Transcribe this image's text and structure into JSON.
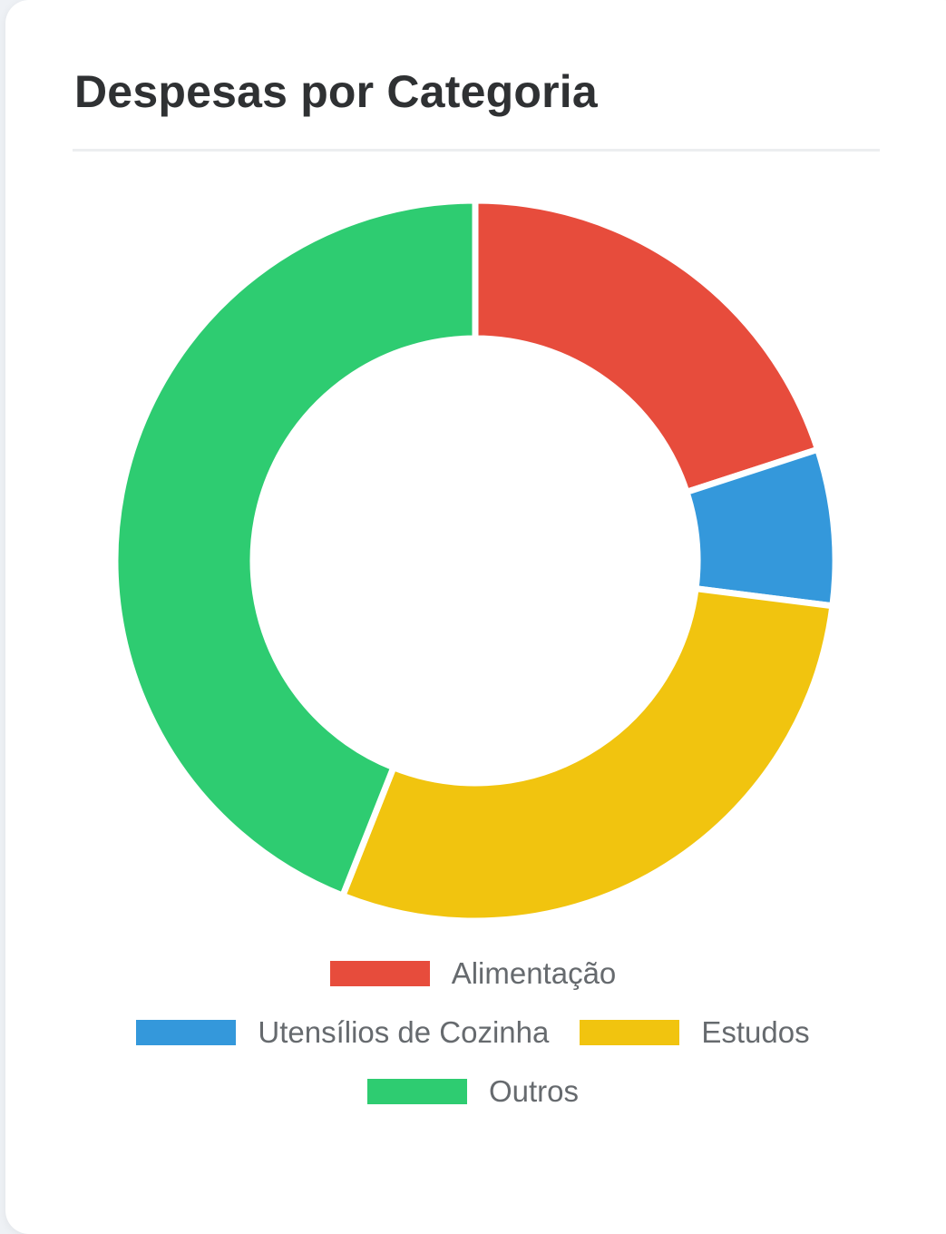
{
  "card": {
    "title": "Despesas por Categoria"
  },
  "chart_data": {
    "type": "pie",
    "variant": "doughnut",
    "title": "Despesas por Categoria",
    "categories": [
      "Alimentação",
      "Utensílios de Cozinha",
      "Estudos",
      "Outros"
    ],
    "values": [
      20,
      7,
      29,
      44
    ],
    "colors": [
      "#e74c3c",
      "#3498db",
      "#f1c40f",
      "#2ecc71"
    ],
    "legend_position": "bottom"
  }
}
